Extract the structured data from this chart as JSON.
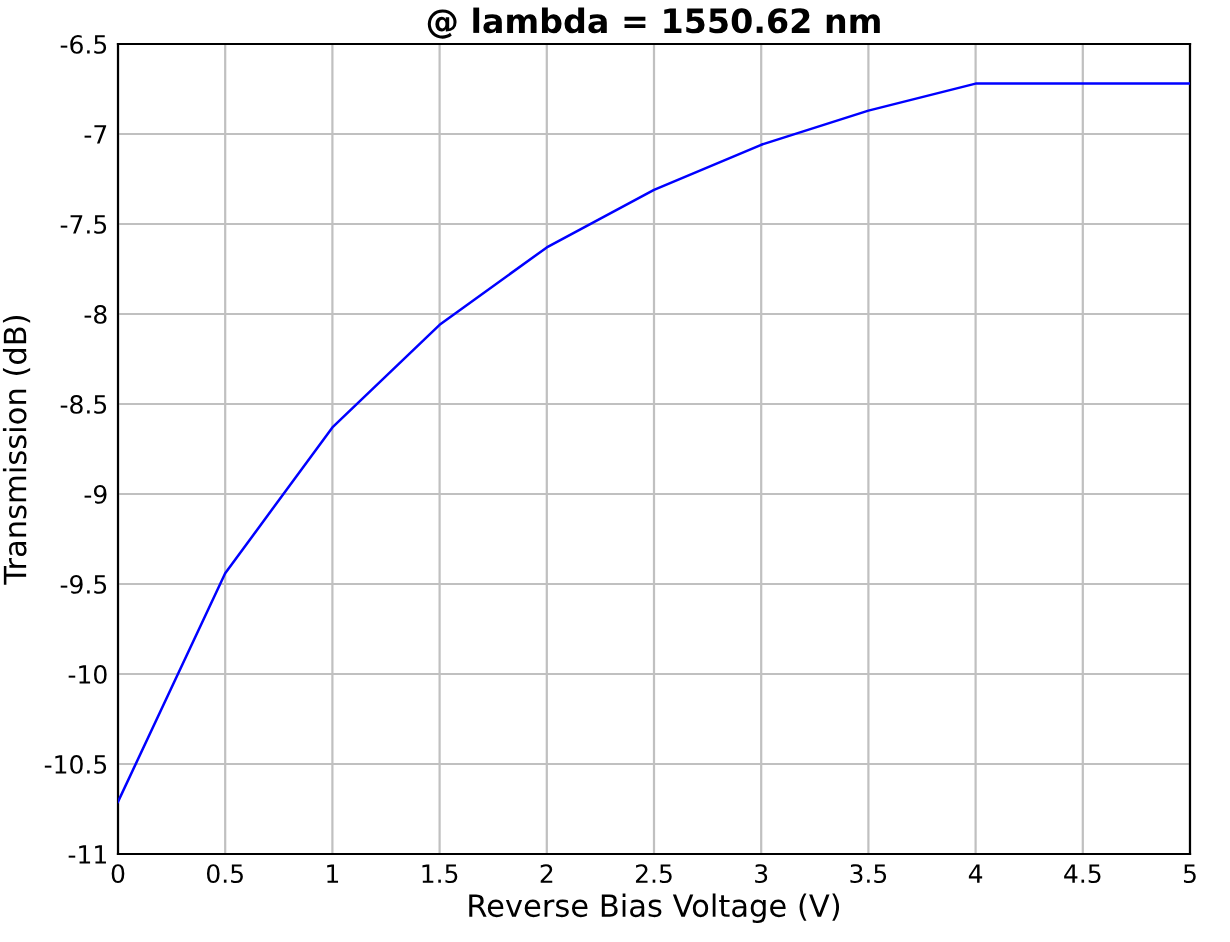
{
  "chart_data": {
    "type": "line",
    "title": "@ lambda = 1550.62 nm",
    "xlabel": "Reverse Bias Voltage (V)",
    "ylabel": "Transmission (dB)",
    "x": [
      0,
      0.5,
      1,
      1.5,
      2,
      2.5,
      3,
      3.5,
      4,
      4.5,
      5
    ],
    "series": [
      {
        "color": "#0000ff",
        "values": [
          -10.71,
          -9.44,
          -8.63,
          -8.06,
          -7.63,
          -7.31,
          -7.06,
          -6.87,
          -6.72,
          -6.72,
          -6.72
        ]
      }
    ],
    "xlim": [
      0,
      5
    ],
    "xticks": [
      0,
      0.5,
      1,
      1.5,
      2,
      2.5,
      3,
      3.5,
      4,
      4.5,
      5
    ],
    "ylim": [
      -11,
      -6.5
    ],
    "yticks": [
      -11,
      -10.5,
      -10,
      -9.5,
      -9,
      -8.5,
      -8,
      -7.5,
      -7,
      -6.5
    ],
    "grid": true,
    "legend": false,
    "marker": "none",
    "line_style": "solid"
  }
}
